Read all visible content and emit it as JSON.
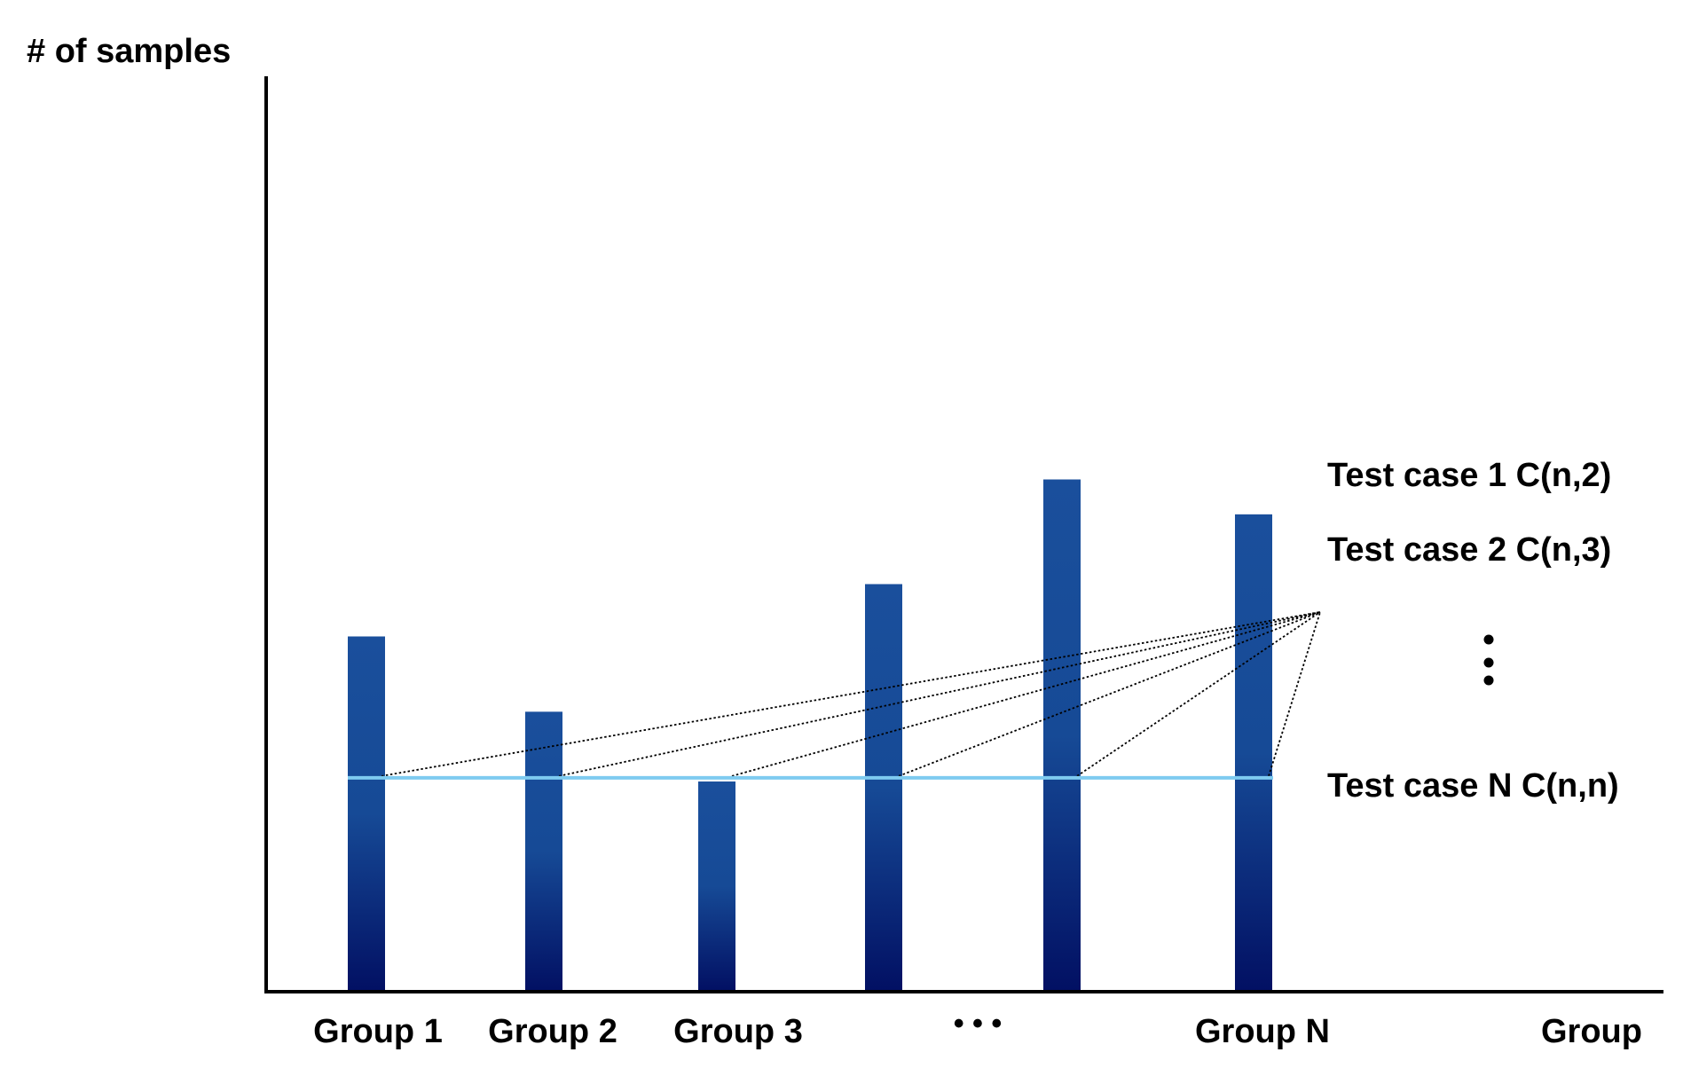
{
  "labels": {
    "y_axis": "# of samples",
    "x_axis": "Group",
    "ellipsis": "• • •"
  },
  "groups": [
    {
      "name": "Group 1",
      "relative_height": 0.386
    },
    {
      "name": "Group 2",
      "relative_height": 0.304
    },
    {
      "name": "Group 3",
      "relative_height": 0.228
    },
    {
      "name": "",
      "relative_height": 0.443
    },
    {
      "name": "",
      "relative_height": 0.557
    },
    {
      "name": "Group N",
      "relative_height": 0.519
    }
  ],
  "threshold_relative_height": 0.232,
  "test_cases": [
    {
      "label": "Test case 1 C(n,2)"
    },
    {
      "label": "Test case 2 C(n,3)"
    },
    {
      "label": "Test case N C(n,n)"
    }
  ],
  "colors": {
    "bar_top": "#1a4f9c",
    "bar_bottom": "#021063",
    "threshold_line": "#7ecbf0",
    "axis": "#000000"
  }
}
